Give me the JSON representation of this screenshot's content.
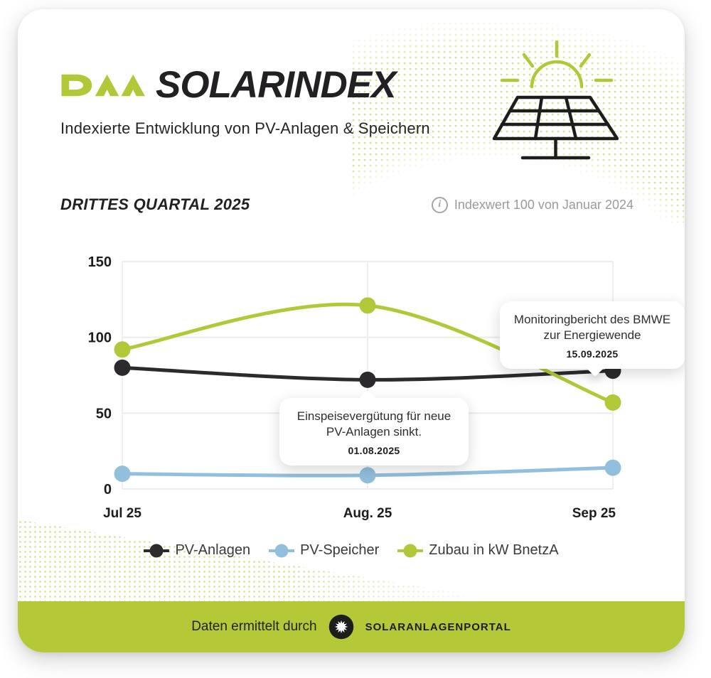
{
  "header": {
    "logo_text": "DAA",
    "title": "SOLARINDEX",
    "subtitle": "Indexierte Entwicklung von PV-Anlagen & Speichern"
  },
  "section": {
    "title": "DRITTES QUARTAL 2025",
    "note": "Indexwert 100 von Januar 2024"
  },
  "chart_data": {
    "type": "line",
    "title": "",
    "xlabel": "",
    "ylabel": "",
    "categories": [
      "Jul 25",
      "Aug. 25",
      "Sep 25"
    ],
    "series": [
      {
        "name": "PV-Anlagen",
        "color": "#2d2a2d",
        "values": [
          80,
          72,
          78
        ]
      },
      {
        "name": "PV-Speicher",
        "color": "#92bfdc",
        "values": [
          10,
          9,
          14
        ]
      },
      {
        "name": "Zubau in kW BnetzA",
        "color": "#b2c838",
        "values": [
          92,
          121,
          57
        ]
      }
    ],
    "ylim": [
      0,
      150
    ],
    "yticks": [
      0,
      50,
      100,
      150
    ],
    "grid": true,
    "legend_position": "bottom"
  },
  "annotations": [
    {
      "line1": "Einspeisevergütung für neue",
      "line2": "PV-Anlagen sinkt.",
      "date": "01.08.2025"
    },
    {
      "line1": "Monitoringbericht des BMWE",
      "line2": "zur Energiewende",
      "date": "15.09.2025"
    }
  ],
  "footer": {
    "text": "Daten ermittelt durch",
    "brand": "SOLARANLAGENPORTAL"
  },
  "colors": {
    "accent_lime": "#b5c938",
    "line_black": "#2d2a2d",
    "line_blue": "#92bfdc",
    "line_green": "#b2c838",
    "note_gray": "#9b9b9b",
    "grid_gray": "#ececec"
  }
}
